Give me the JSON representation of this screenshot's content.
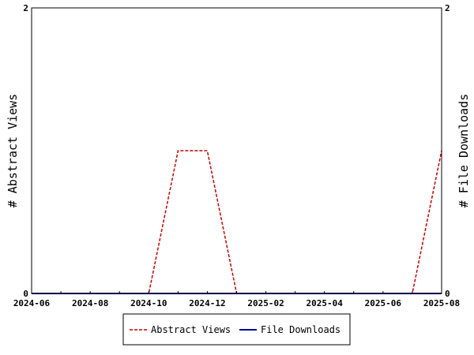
{
  "chart_data": {
    "type": "line",
    "x_axis": {
      "type": "date",
      "range": [
        "2024-06",
        "2025-08"
      ],
      "tick_labels": [
        "2024-06",
        "2024-08",
        "2024-10",
        "2024-12",
        "2025-02",
        "2025-04",
        "2025-06",
        "2025-08"
      ]
    },
    "y_left": {
      "label": "# Abstract Views",
      "range": [
        0,
        2
      ],
      "tick_labels": [
        "0",
        "2"
      ]
    },
    "y_right": {
      "label": "# File Downloads",
      "range": [
        0,
        2
      ],
      "tick_labels": [
        "0",
        "2"
      ]
    },
    "x": [
      "2024-06",
      "2024-07",
      "2024-08",
      "2024-09",
      "2024-10",
      "2024-11",
      "2024-12",
      "2025-01",
      "2025-02",
      "2025-03",
      "2025-04",
      "2025-05",
      "2025-06",
      "2025-07",
      "2025-08"
    ],
    "series": [
      {
        "name": "Abstract Views",
        "axis": "left",
        "color": "#cc0000",
        "dash": "dashed",
        "values": [
          0,
          0,
          0,
          0,
          0,
          1,
          1,
          0,
          0,
          0,
          0,
          0,
          0,
          0,
          1
        ]
      },
      {
        "name": "File Downloads",
        "axis": "right",
        "color": "#000099",
        "dash": "solid",
        "values": [
          0,
          0,
          0,
          0,
          0,
          0,
          0,
          0,
          0,
          0,
          0,
          0,
          0,
          0,
          0
        ]
      }
    ],
    "grid": false,
    "legend_position": "bottom-center"
  }
}
